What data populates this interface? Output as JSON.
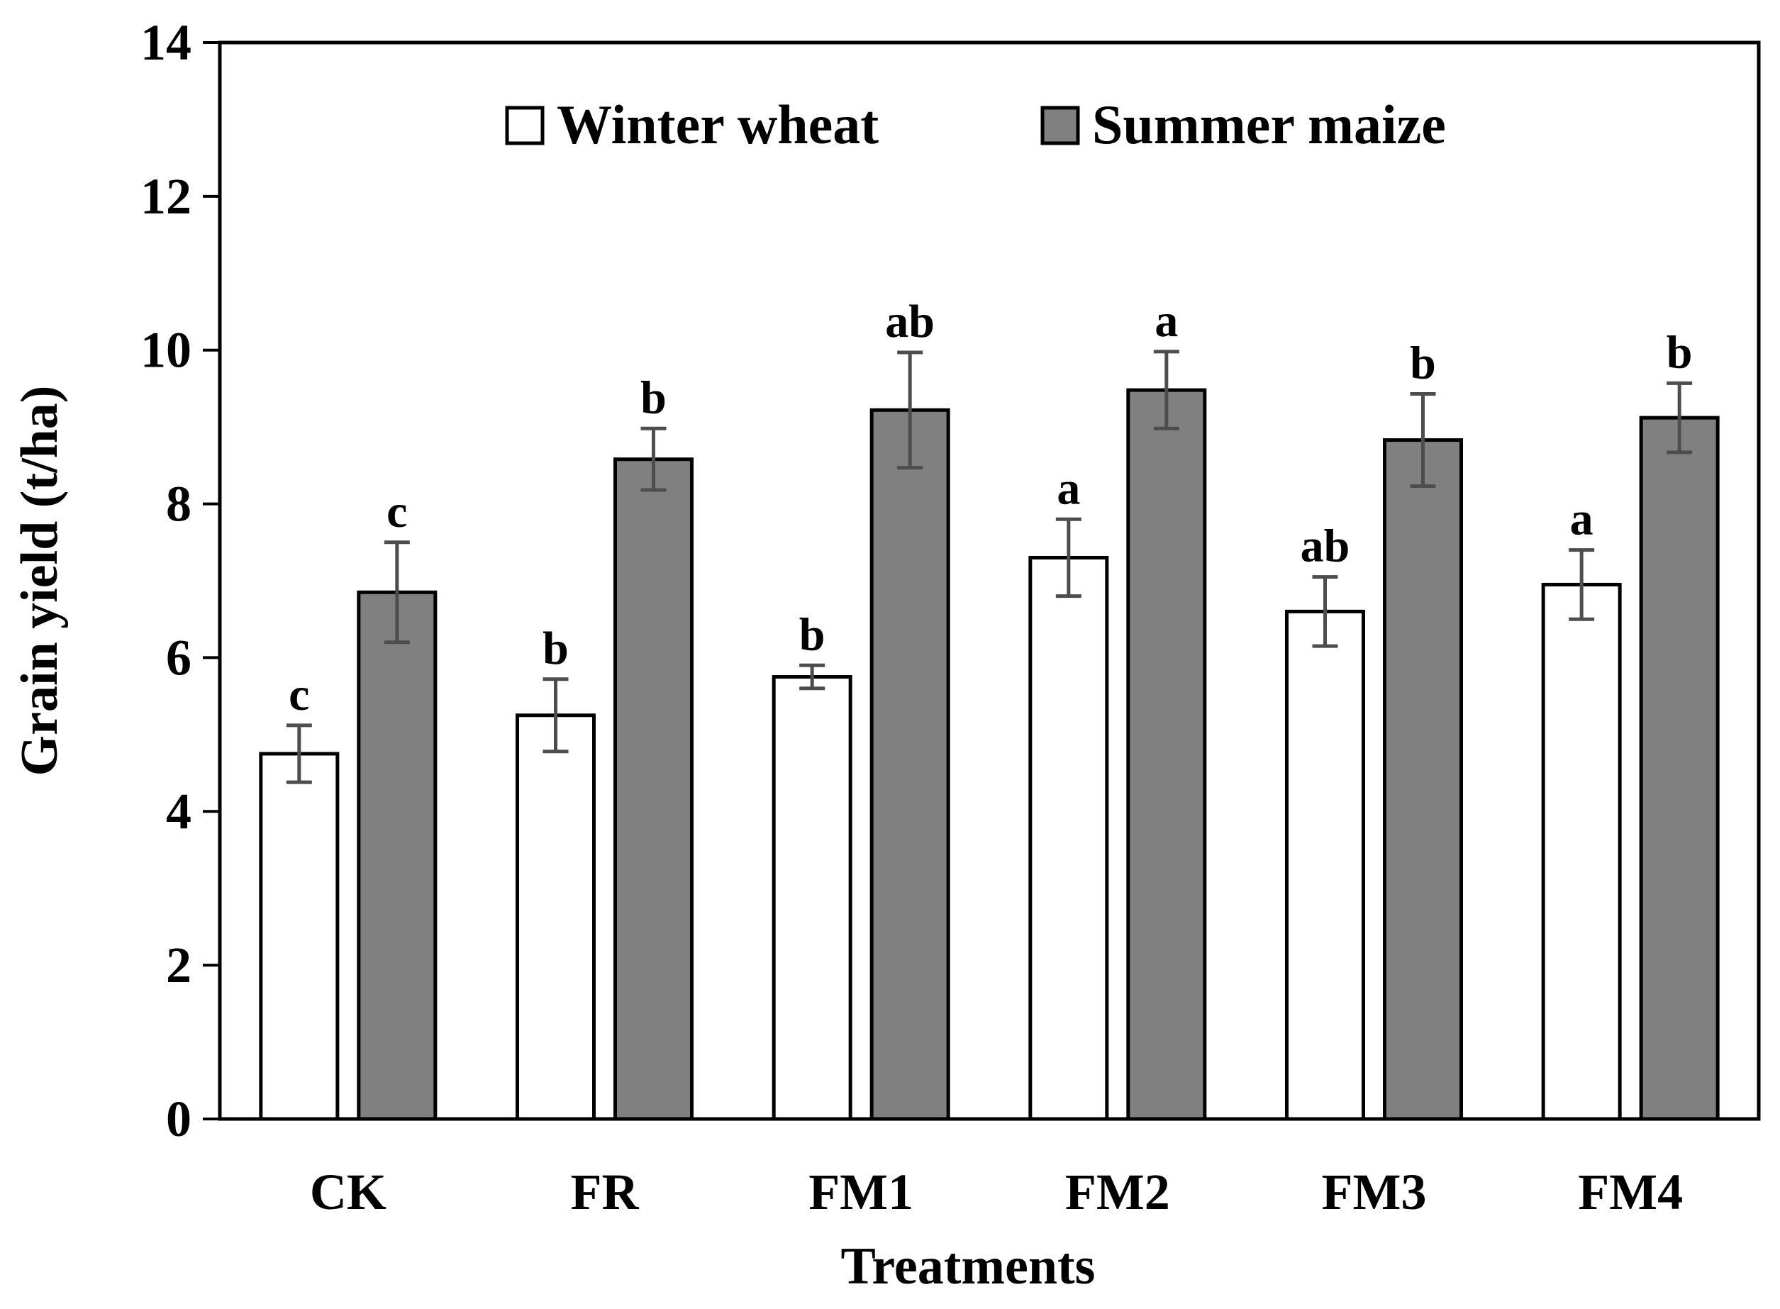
{
  "chart_data": {
    "type": "bar",
    "title": "",
    "xlabel": "Treatments",
    "ylabel": "Grain yield (t/ha)",
    "ylim": [
      0,
      14
    ],
    "yticks": [
      0,
      2,
      4,
      6,
      8,
      10,
      12,
      14
    ],
    "grid": false,
    "legend_position": "top-center",
    "categories": [
      "CK",
      "FR",
      "FM1",
      "FM2",
      "FM3",
      "FM4"
    ],
    "series": [
      {
        "name": "Winter wheat",
        "color": "#ffffff",
        "values": [
          4.75,
          5.25,
          5.75,
          7.3,
          6.6,
          6.95
        ],
        "errors": [
          0.37,
          0.47,
          0.15,
          0.5,
          0.45,
          0.45
        ],
        "significance": [
          "c",
          "b",
          "b",
          "a",
          "ab",
          "a"
        ]
      },
      {
        "name": "Summer maize",
        "color": "#808080",
        "values": [
          6.85,
          8.58,
          9.22,
          9.48,
          8.83,
          9.12
        ],
        "errors": [
          0.65,
          0.4,
          0.75,
          0.5,
          0.6,
          0.45
        ],
        "significance": [
          "c",
          "b",
          "ab",
          "a",
          "b",
          "b"
        ]
      }
    ]
  }
}
